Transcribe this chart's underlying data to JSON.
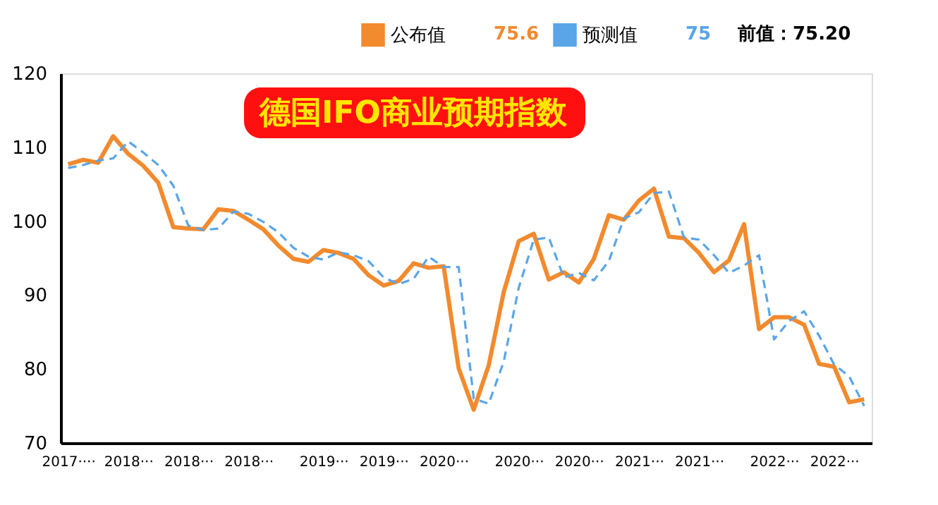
{
  "chart_data": {
    "type": "line",
    "title": "德国IFO商业预期指数",
    "categories": [
      "2017····",
      null,
      null,
      null,
      "2018···",
      null,
      null,
      null,
      "2018···",
      null,
      null,
      null,
      "2018···",
      null,
      null,
      null,
      null,
      "2019···",
      null,
      null,
      null,
      "2019···",
      null,
      null,
      null,
      "2020···",
      null,
      null,
      null,
      null,
      "2020···",
      null,
      null,
      null,
      "2020···",
      null,
      null,
      null,
      "2021···",
      null,
      null,
      null,
      "2021···",
      null,
      null,
      null,
      null,
      "2022···",
      null,
      null,
      null,
      "2022···",
      null,
      null
    ],
    "series": [
      {
        "name": "公布值",
        "color": "#f28a2e",
        "line_style": "solid",
        "values": [
          107.7,
          108.3,
          107.9,
          111.5,
          109.1,
          107.5,
          105.2,
          99.2,
          99.0,
          98.9,
          101.6,
          101.4,
          100.2,
          98.9,
          96.7,
          94.9,
          94.5,
          96.1,
          95.7,
          94.9,
          92.7,
          91.3,
          91.9,
          94.3,
          93.7,
          93.9,
          80.1,
          74.5,
          80.5,
          90.4,
          97.3,
          98.3,
          92.1,
          93.1,
          91.7,
          94.9,
          100.8,
          100.2,
          102.8,
          104.4,
          97.9,
          97.7,
          95.7,
          93.1,
          94.7,
          99.6,
          85.4,
          87.0,
          87.0,
          86.0,
          80.7,
          80.3,
          75.5,
          75.9
        ]
      },
      {
        "name": "预测值",
        "color": "#5aa5e8",
        "line_style": "dashed",
        "values": [
          107.2,
          107.6,
          108.2,
          108.5,
          110.8,
          109.3,
          107.6,
          104.8,
          99.4,
          98.8,
          99.0,
          101.3,
          101.0,
          99.9,
          98.5,
          96.4,
          95.2,
          94.8,
          95.8,
          95.4,
          94.6,
          92.4,
          91.5,
          92.2,
          95.2,
          93.8,
          93.8,
          76.0,
          75.3,
          81.0,
          91.0,
          97.5,
          97.8,
          92.4,
          93.0,
          92.0,
          94.6,
          100.4,
          101.2,
          103.8,
          104.0,
          97.8,
          97.5,
          95.4,
          93.0,
          94.0,
          95.4,
          84.0,
          86.5,
          87.8,
          84.5,
          80.6,
          79.0,
          75.0
        ]
      }
    ],
    "ylim": [
      70,
      120
    ],
    "yticks": [
      70,
      80,
      90,
      100,
      110,
      120
    ],
    "grid": false,
    "legend": "top right",
    "annotations": [
      "75.6",
      "75",
      "前值：75.20"
    ]
  }
}
